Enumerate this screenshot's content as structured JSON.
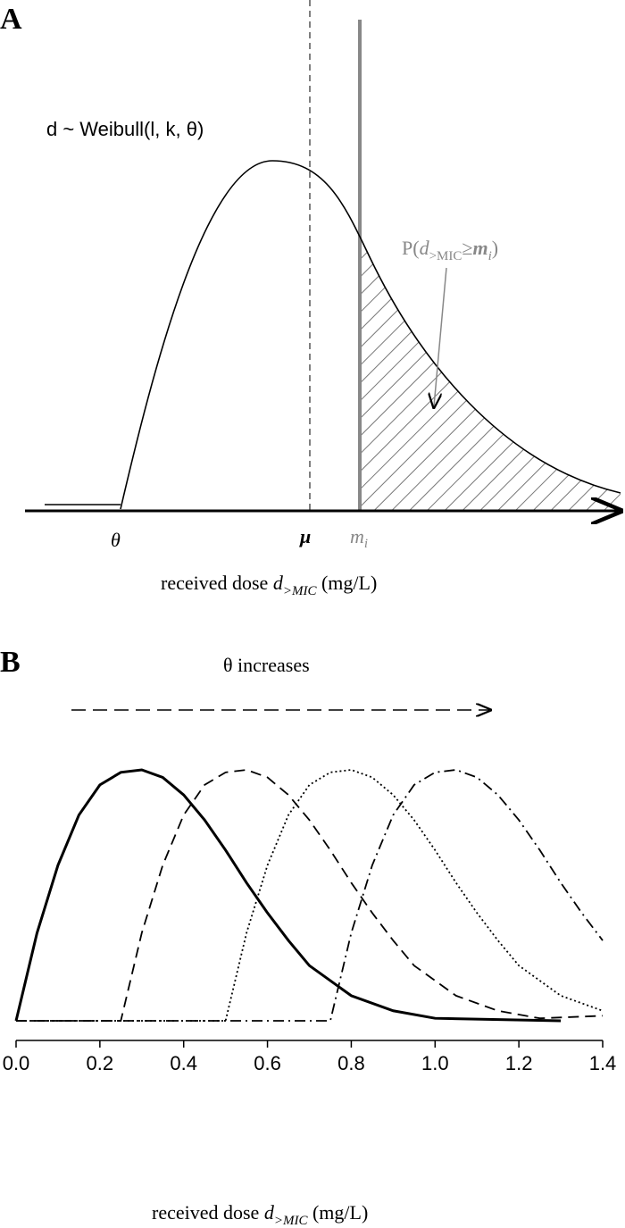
{
  "panel_a": {
    "label": "A",
    "formula": "d ~ Weibull(l, k, θ)",
    "area_label": [
      "P(",
      "d",
      ">MIC",
      "≥",
      "m",
      "i",
      ")"
    ],
    "theta": "θ",
    "mu": "μ",
    "mi": [
      "m",
      "i"
    ],
    "xlabel": [
      "received dose ",
      "d",
      ">MIC",
      " (mg/L)"
    ]
  },
  "panel_b": {
    "label": "B",
    "annotation": "θ increases"
  },
  "chart_data": {
    "type": "line",
    "xlabel": [
      "received dose ",
      "d",
      ">MIC",
      " (mg/L)"
    ],
    "xlim": [
      0,
      1.4
    ],
    "ylim": [
      0,
      1
    ],
    "xticks": [
      {
        "value": 0,
        "label": "0.0"
      },
      0.2,
      0.4,
      0.6,
      0.8,
      {
        "value": 1,
        "label": "1.0"
      },
      1.2,
      1.4
    ],
    "series": [
      {
        "color": "#000000",
        "dash": "solid",
        "x": [
          0,
          0.05,
          0.1,
          0.15,
          0.2,
          0.25,
          0.3,
          0.35,
          0.4,
          0.45,
          0.5,
          0.55,
          0.6,
          0.65,
          0.7,
          0.8,
          0.9,
          1.0,
          1.3
        ],
        "values": [
          0,
          0.35,
          0.62,
          0.82,
          0.94,
          0.99,
          1,
          0.97,
          0.9,
          0.8,
          0.68,
          0.55,
          0.43,
          0.32,
          0.22,
          0.1,
          0.04,
          0.01,
          0
        ]
      },
      {
        "color": "#000000",
        "dash": "dashed",
        "x": [
          0,
          0.25,
          0.3,
          0.35,
          0.4,
          0.45,
          0.5,
          0.55,
          0.6,
          0.65,
          0.7,
          0.75,
          0.8,
          0.85,
          0.9,
          0.95,
          1.05,
          1.15,
          1.25,
          1.4
        ],
        "values": [
          0,
          0,
          0.35,
          0.62,
          0.82,
          0.94,
          0.99,
          1,
          0.97,
          0.9,
          0.8,
          0.68,
          0.55,
          0.43,
          0.32,
          0.22,
          0.1,
          0.04,
          0.01,
          0.02
        ]
      },
      {
        "color": "#000000",
        "dash": "dotted",
        "x": [
          0,
          0.5,
          0.55,
          0.6,
          0.65,
          0.7,
          0.75,
          0.8,
          0.85,
          0.9,
          0.95,
          1.0,
          1.05,
          1.1,
          1.15,
          1.2,
          1.3,
          1.4
        ],
        "values": [
          0,
          0,
          0.35,
          0.62,
          0.82,
          0.94,
          0.99,
          1,
          0.97,
          0.9,
          0.8,
          0.68,
          0.55,
          0.43,
          0.32,
          0.22,
          0.1,
          0.04
        ]
      },
      {
        "color": "#000000",
        "dash": "dashdot",
        "x": [
          0,
          0.75,
          0.8,
          0.85,
          0.9,
          0.95,
          1.0,
          1.05,
          1.1,
          1.15,
          1.2,
          1.25,
          1.3,
          1.35,
          1.4
        ],
        "values": [
          0,
          0,
          0.35,
          0.62,
          0.82,
          0.94,
          0.99,
          1,
          0.97,
          0.9,
          0.8,
          0.68,
          0.55,
          0.43,
          0.32
        ]
      }
    ]
  }
}
